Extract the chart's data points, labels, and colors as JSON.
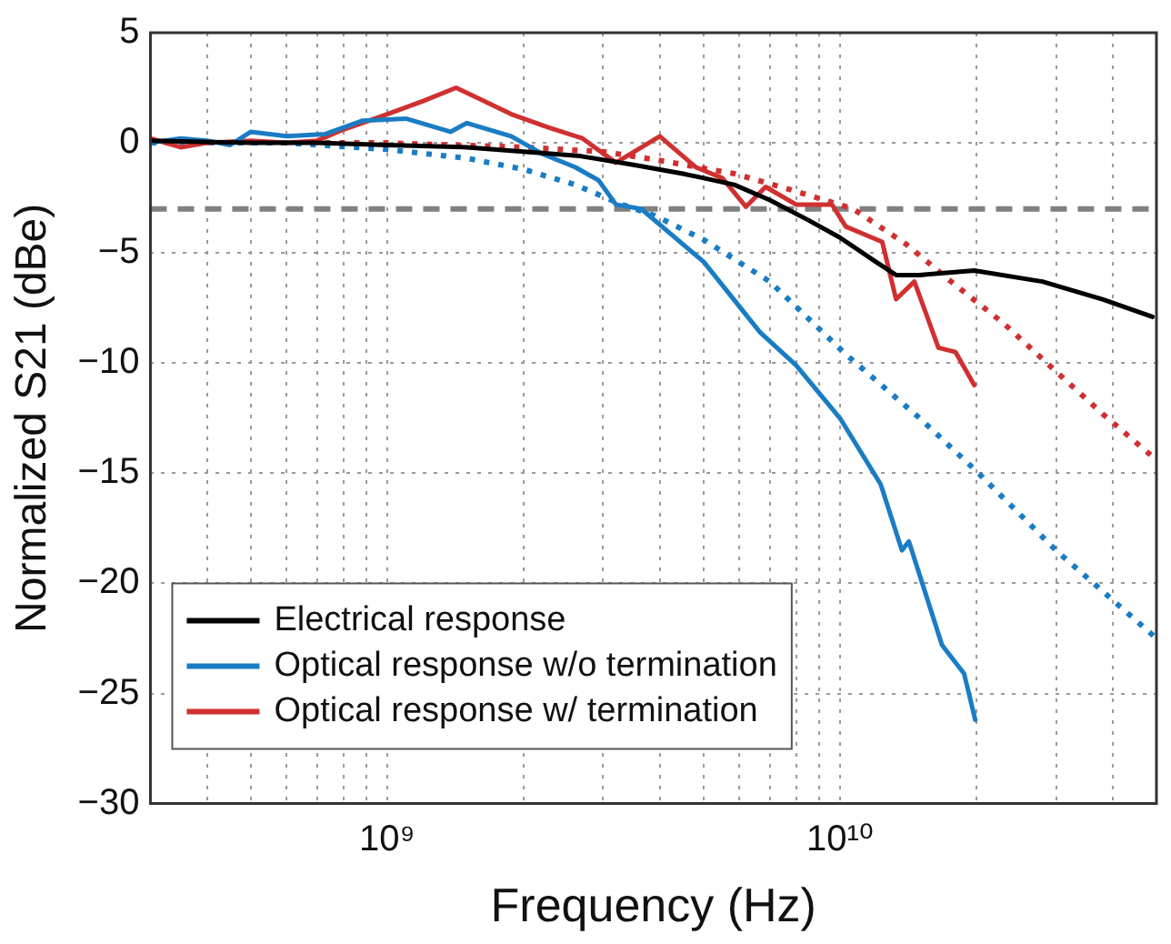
{
  "chart_data": {
    "type": "line",
    "xlabel": "Frequency (Hz)",
    "ylabel": "Normalized S21 (dBe)",
    "log": "x",
    "grid": true,
    "legend": "bottom left",
    "xlim": [
      300000000.0,
      50000000000.0
    ],
    "ylim": [
      -30,
      5
    ],
    "xticks": [
      {
        "value": 400000000.0,
        "label": null
      },
      {
        "value": 500000000.0,
        "label": null
      },
      {
        "value": 600000000.0,
        "label": null
      },
      {
        "value": 700000000.0,
        "label": null
      },
      {
        "value": 800000000.0,
        "label": null
      },
      {
        "value": 900000000.0,
        "label": null
      },
      {
        "value": 1000000000.0,
        "label": "10⁹"
      },
      {
        "value": 2000000000.0,
        "label": null
      },
      {
        "value": 3000000000.0,
        "label": null
      },
      {
        "value": 4000000000.0,
        "label": null
      },
      {
        "value": 5000000000.0,
        "label": null
      },
      {
        "value": 6000000000.0,
        "label": null
      },
      {
        "value": 7000000000.0,
        "label": null
      },
      {
        "value": 8000000000.0,
        "label": null
      },
      {
        "value": 9000000000.0,
        "label": null
      },
      {
        "value": 10000000000.0,
        "label": "10¹⁰"
      },
      {
        "value": 20000000000.0,
        "label": null
      },
      {
        "value": 30000000000.0,
        "label": null
      },
      {
        "value": 40000000000.0,
        "label": null
      },
      {
        "value": 50000000000.0,
        "label": null
      }
    ],
    "yticks": [
      -30,
      -25,
      -20,
      -15,
      -10,
      -5,
      0,
      5
    ],
    "ref_lines": [
      {
        "axis": "y",
        "value": -3,
        "label": null,
        "color": "#808080",
        "line_style": "dashed"
      }
    ],
    "series": [
      {
        "name": "Electrical response",
        "color": "#000000",
        "line_style": "solid",
        "x": [
          300000000.0,
          500000000.0,
          700000000.0,
          1000000000.0,
          1500000000.0,
          2000000000.0,
          2670000000.0,
          3500000000.0,
          4500000000.0,
          5840000000.0,
          7000000000.0,
          8500000000.0,
          10000000000.0,
          12000000000.0,
          13300000000.0,
          15000000000.0,
          19800000000.0,
          28000000000.0,
          38000000000.0,
          49000000000.0
        ],
        "values": [
          0.1,
          0,
          0,
          -0.1,
          -0.2,
          -0.4,
          -0.6,
          -1.0,
          -1.4,
          -1.9,
          -2.6,
          -3.5,
          -4.3,
          -5.4,
          -6.0,
          -6.0,
          -5.8,
          -6.3,
          -7.1,
          -7.9
        ]
      },
      {
        "name": "Optical response w/o termination",
        "color": "#1a7cc4",
        "line_style": "solid",
        "x": [
          300000000.0,
          350000000.0,
          400000000.0,
          450000000.0,
          500000000.0,
          600000000.0,
          730000000.0,
          880000000.0,
          1100000000.0,
          1380000000.0,
          1500000000.0,
          1880000000.0,
          2200000000.0,
          2600000000.0,
          2930000000.0,
          3200000000.0,
          3640000000.0,
          5000000000.0,
          6660000000.0,
          8000000000.0,
          10000000000.0,
          12300000000.0,
          13700000000.0,
          14200000000.0,
          16800000000.0,
          18800000000.0,
          19900000000.0
        ],
        "values": [
          0,
          0.2,
          0.1,
          -0.1,
          0.5,
          0.3,
          0.4,
          1.0,
          1.1,
          0.5,
          0.9,
          0.3,
          -0.5,
          -1.1,
          -1.7,
          -2.8,
          -3.0,
          -5.4,
          -8.6,
          -10.1,
          -12.5,
          -15.5,
          -18.5,
          -18.1,
          -22.8,
          -24.1,
          -26.2
        ]
      },
      {
        "name": "Optical response w/ termination",
        "color": "#d03030",
        "line_style": "solid",
        "x": [
          300000000.0,
          350000000.0,
          400000000.0,
          500000000.0,
          600000000.0,
          700000000.0,
          800000000.0,
          1000000000.0,
          1200000000.0,
          1420000000.0,
          1600000000.0,
          1880000000.0,
          2270000000.0,
          2700000000.0,
          3200000000.0,
          4000000000.0,
          4800000000.0,
          5500000000.0,
          6200000000.0,
          6850000000.0,
          8000000000.0,
          9600000000.0,
          10300000000.0,
          12400000000.0,
          13300000000.0,
          14600000000.0,
          16500000000.0,
          18000000000.0,
          19800000000.0
        ],
        "values": [
          0.2,
          -0.2,
          0,
          0.1,
          0,
          0.1,
          0.6,
          1.3,
          1.9,
          2.5,
          2.0,
          1.3,
          0.7,
          0.2,
          -0.9,
          0.3,
          -1.1,
          -1.6,
          -2.9,
          -2.0,
          -2.8,
          -2.8,
          -3.8,
          -4.5,
          -7.1,
          -6.3,
          -9.3,
          -9.5,
          -11.0
        ]
      },
      {
        "color": "#1a7cc4",
        "line_style": "dotted",
        "x": [
          300000000.0,
          600000000.0,
          1000000000.0,
          1500000000.0,
          2000000000.0,
          2600000000.0,
          3300000000.0,
          3900000000.0,
          5000000000.0,
          7000000000.0,
          10300000000.0,
          15000000000.0,
          20000000000.0,
          30000000000.0,
          50000000000.0
        ],
        "values": [
          0,
          0,
          -0.3,
          -0.7,
          -1.2,
          -1.9,
          -2.8,
          -3.3,
          -4.4,
          -6.3,
          -9.6,
          -12.5,
          -14.9,
          -18.5,
          -22.5
        ]
      },
      {
        "color": "#d03030",
        "line_style": "dotted",
        "x": [
          300000000.0,
          1000000000.0,
          2000000000.0,
          3000000000.0,
          4000000000.0,
          5850000000.0,
          8000000000.0,
          10700000000.0,
          14000000000.0,
          17600000000.0,
          23000000000.0,
          29000000000.0,
          38000000000.0,
          50000000000.0
        ],
        "values": [
          0,
          0,
          -0.2,
          -0.4,
          -0.8,
          -1.4,
          -2.2,
          -3.0,
          -4.6,
          -6.3,
          -8.2,
          -10.1,
          -12.3,
          -14.4
        ]
      }
    ]
  }
}
